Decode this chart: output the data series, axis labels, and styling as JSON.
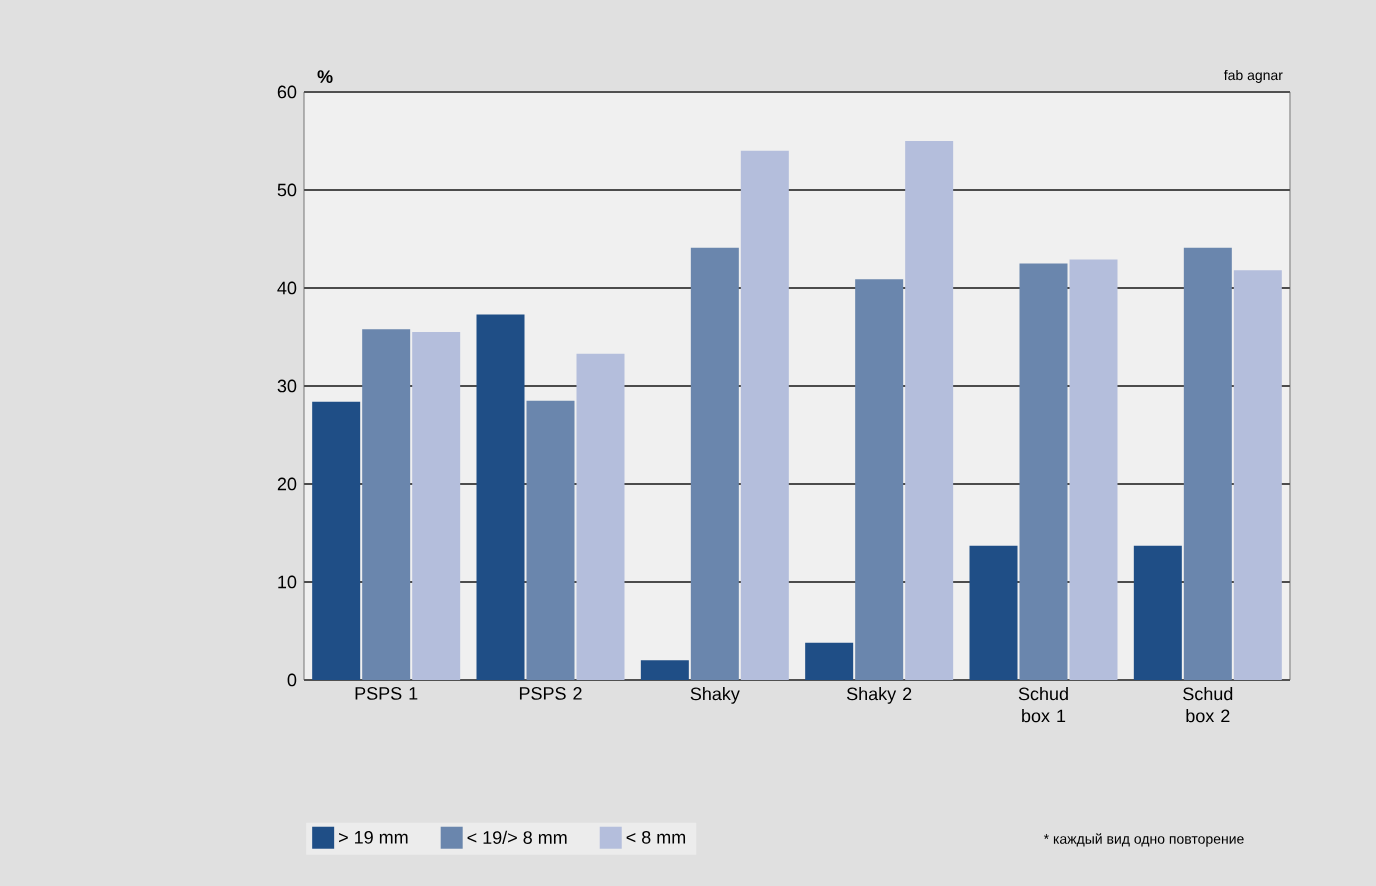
{
  "chart_data": {
    "type": "bar",
    "ylabel": "%",
    "categories": [
      "PSPS 1",
      "PSPS 2",
      "Shaky",
      "Shaky 2",
      "Schud box 1",
      "Schud box 2"
    ],
    "series": [
      {
        "name": "> 19 mm",
        "color": "#1f4e86",
        "values": [
          28.4,
          37.3,
          2,
          3.8,
          13.7,
          13.7
        ]
      },
      {
        "name": "< 19/> 8 mm",
        "color": "#6a86ad",
        "values": [
          35.8,
          28.5,
          44.1,
          40.9,
          42.5,
          44.1
        ]
      },
      {
        "name": "< 8 mm",
        "color": "#b4bedc",
        "values": [
          35.5,
          33.3,
          54,
          55,
          42.9,
          41.8
        ]
      }
    ],
    "ylim": [
      0,
      60
    ],
    "yticks": [
      0,
      10,
      20,
      30,
      40,
      50,
      60
    ],
    "grid": "y",
    "legend": "bottom",
    "annotations": [
      "fab agnar",
      "* каждый вид одно повторение"
    ]
  }
}
